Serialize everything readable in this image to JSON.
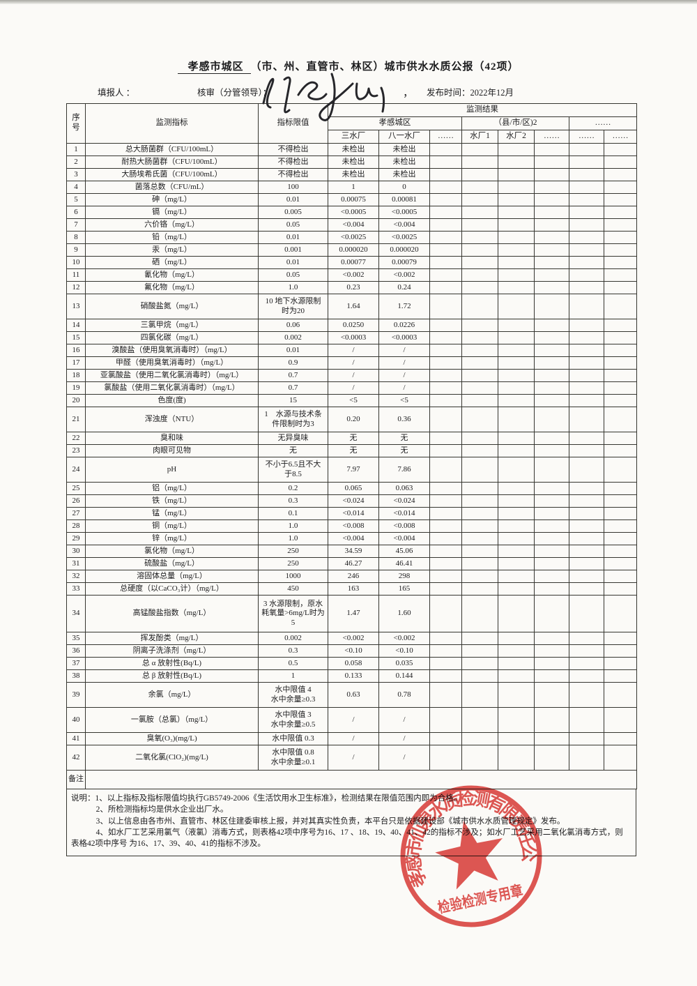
{
  "title": {
    "underlined": "孝感市城区",
    "rest": "（市、州、直管市、林区）城市供水水质公报（42项）"
  },
  "meta": {
    "filler": "填报人 ：",
    "reviewer": "核审（分管领导）：",
    "comma": "，",
    "publish": "发布时间：2022年12月"
  },
  "table": {
    "head": {
      "seq": "序号",
      "indicator": "监测指标",
      "limit": "指标限值",
      "result": "监测结果",
      "group1": "孝感城区",
      "group2": "（县/市/区)2",
      "group3": "……",
      "plants": [
        "三水厂",
        "八一水厂",
        "……",
        "水厂1",
        "水厂2",
        "……",
        "……",
        "……"
      ]
    },
    "rows": [
      {
        "no": "1",
        "name": "总大肠菌群（CFU/100mL）",
        "limit": "不得检出",
        "v1": "未检出",
        "v2": "未检出",
        "h": "s"
      },
      {
        "no": "2",
        "name": "耐热大肠菌群（CFU/100mL）",
        "limit": "不得检出",
        "v1": "未检出",
        "v2": "未检出",
        "h": "s"
      },
      {
        "no": "3",
        "name": "大肠埃希氏菌（CFU/100mL）",
        "limit": "不得检出",
        "v1": "未检出",
        "v2": "未检出",
        "h": "s"
      },
      {
        "no": "4",
        "name": "菌落总数（CFU/mL）",
        "limit": "100",
        "v1": "1",
        "v2": "0",
        "h": "s"
      },
      {
        "no": "5",
        "name": "砷（mg/L）",
        "limit": "0.01",
        "v1": "0.00075",
        "v2": "0.00081",
        "h": "s"
      },
      {
        "no": "6",
        "name": "镉（mg/L）",
        "limit": "0.005",
        "v1": "<0.0005",
        "v2": "<0.0005",
        "h": "s"
      },
      {
        "no": "7",
        "name": "六价铬（mg/L）",
        "limit": "0.05",
        "v1": "<0.004",
        "v2": "<0.004",
        "h": "s"
      },
      {
        "no": "8",
        "name": "铅（mg/L）",
        "limit": "0.01",
        "v1": "<0.0025",
        "v2": "<0.0025",
        "h": "s"
      },
      {
        "no": "9",
        "name": "汞（mg/L）",
        "limit": "0.001",
        "v1": "0.000020",
        "v2": "0.000020",
        "h": "s"
      },
      {
        "no": "10",
        "name": "硒（mg/L）",
        "limit": "0.01",
        "v1": "0.00077",
        "v2": "0.00079",
        "h": "s"
      },
      {
        "no": "11",
        "name": "氰化物（mg/L）",
        "limit": "0.05",
        "v1": "<0.002",
        "v2": "<0.002",
        "h": "s"
      },
      {
        "no": "12",
        "name": "氟化物（mg/L）",
        "limit": "1.0",
        "v1": "0.23",
        "v2": "0.24",
        "h": "s"
      },
      {
        "no": "13",
        "name": "硝酸盐氮（mg/L）",
        "limit": "10 地下水源限制\n时为20",
        "v1": "1.64",
        "v2": "1.72",
        "h": "d"
      },
      {
        "no": "14",
        "name": "三氯甲烷（mg/L）",
        "limit": "0.06",
        "v1": "0.0250",
        "v2": "0.0226",
        "h": "s"
      },
      {
        "no": "15",
        "name": "四氯化碳（mg/L）",
        "limit": "0.002",
        "v1": "<0.0003",
        "v2": "<0.0003",
        "h": "s"
      },
      {
        "no": "16",
        "name": "溴酸盐（使用臭氧消毒时）（mg/L）",
        "limit": "0.01",
        "v1": "/",
        "v2": "/",
        "h": "s"
      },
      {
        "no": "17",
        "name": "甲醛（使用臭氧消毒时）（mg/L）",
        "limit": "0.9",
        "v1": "/",
        "v2": "/",
        "h": "s"
      },
      {
        "no": "18",
        "name": "亚氯酸盐（使用二氧化氯消毒时）（mg/L）",
        "limit": "0.7",
        "v1": "/",
        "v2": "/",
        "h": "s"
      },
      {
        "no": "19",
        "name": "氯酸盐（使用二氧化氯消毒时）（mg/L）",
        "limit": "0.7",
        "v1": "/",
        "v2": "/",
        "h": "s"
      },
      {
        "no": "20",
        "name": "色度(度)",
        "limit": "15",
        "v1": "<5",
        "v2": "<5",
        "h": "s"
      },
      {
        "no": "21",
        "name": "浑浊度（NTU）",
        "limit": "1　水源与技术条\n件限制时为3",
        "v1": "0.20",
        "v2": "0.36",
        "h": "d"
      },
      {
        "no": "22",
        "name": "臭和味",
        "limit": "无异臭味",
        "v1": "无",
        "v2": "无",
        "h": "s"
      },
      {
        "no": "23",
        "name": "肉眼可见物",
        "limit": "无",
        "v1": "无",
        "v2": "无",
        "h": "s"
      },
      {
        "no": "24",
        "name": "pH",
        "limit": "不小于6.5且不大\n于8.5",
        "v1": "7.97",
        "v2": "7.86",
        "h": "d"
      },
      {
        "no": "25",
        "name": "铝（mg/L）",
        "limit": "0.2",
        "v1": "0.065",
        "v2": "0.063",
        "h": "s"
      },
      {
        "no": "26",
        "name": "铁（mg/L）",
        "limit": "0.3",
        "v1": "<0.024",
        "v2": "<0.024",
        "h": "s"
      },
      {
        "no": "27",
        "name": "锰（mg/L）",
        "limit": "0.1",
        "v1": "<0.014",
        "v2": "<0.014",
        "h": "s"
      },
      {
        "no": "28",
        "name": "铜（mg/L）",
        "limit": "1.0",
        "v1": "<0.008",
        "v2": "<0.008",
        "h": "s"
      },
      {
        "no": "29",
        "name": "锌（mg/L）",
        "limit": "1.0",
        "v1": "<0.004",
        "v2": "<0.004",
        "h": "s"
      },
      {
        "no": "30",
        "name": "氯化物（mg/L）",
        "limit": "250",
        "v1": "34.59",
        "v2": "45.06",
        "h": "s"
      },
      {
        "no": "31",
        "name": "硫酸盐（mg/L）",
        "limit": "250",
        "v1": "46.27",
        "v2": "46.41",
        "h": "s"
      },
      {
        "no": "32",
        "name": "溶固体总量（mg/L）",
        "limit": "1000",
        "v1": "246",
        "v2": "298",
        "h": "s"
      },
      {
        "no": "33",
        "name": "总硬度（以CaCO₃计）（mg/L）",
        "limit": "450",
        "v1": "163",
        "v2": "165",
        "h": "s"
      },
      {
        "no": "34",
        "name": "高锰酸盐指数（mg/L）",
        "limit": "3 水源限制，原水\n耗氧量>6mg/L时为\n5",
        "v1": "1.47",
        "v2": "1.60",
        "h": "t"
      },
      {
        "no": "35",
        "name": "挥发酚类（mg/L）",
        "limit": "0.002",
        "v1": "<0.002",
        "v2": "<0.002",
        "h": "s"
      },
      {
        "no": "36",
        "name": "阴离子洗涤剂（mg/L）",
        "limit": "0.3",
        "v1": "<0.10",
        "v2": "<0.10",
        "h": "s"
      },
      {
        "no": "37",
        "name": "总 α 放射性(Bq/L)",
        "limit": "0.5",
        "v1": "0.058",
        "v2": "0.035",
        "h": "s"
      },
      {
        "no": "38",
        "name": "总 β 放射性(Bq/L)",
        "limit": "1",
        "v1": "0.133",
        "v2": "0.144",
        "h": "s"
      },
      {
        "no": "39",
        "name": "余氯（mg/L）",
        "limit": "水中限值 4\n水中余量≥0.3",
        "v1": "0.63",
        "v2": "0.78",
        "h": "d"
      },
      {
        "no": "40",
        "name": "一氯胺（总氯）（mg/L）",
        "limit": "水中限值 3\n水中余量≥0.5",
        "v1": "/",
        "v2": "/",
        "h": "d"
      },
      {
        "no": "41",
        "name": "臭氧(O₃)(mg/L)",
        "limit": "水中限值 0.3",
        "v1": "/",
        "v2": "/",
        "h": "s"
      },
      {
        "no": "42",
        "name": "二氧化氯(ClO₂)(mg/L)",
        "limit": "水中限值 0.8\n水中余量≥0.1",
        "v1": "/",
        "v2": "/",
        "h": "d"
      }
    ]
  },
  "remark": {
    "label": "备注："
  },
  "notes": {
    "label": "说明：",
    "items": [
      "1、以上指标及指标限值均执行GB5749-2006《生活饮用水卫生标准》，检测结果在限值范围内即为合格。",
      "2、所检测指标均是供水企业出厂水。",
      "3、以上信息由各市州、直管市、林区住建委审核上报，并对其真实性负责，本平台只是依据建设部《城市供水水质管理规定》发布。",
      "4、如水厂工艺采用氯气（液氯）消毒方式，则表格42项中序号为16、17 、18、19、40、41、42的指标不涉及；如水厂工艺采用二氧化氯消毒方式，则表格42项中序号 为16、17、39、40、41的指标不涉及。"
    ]
  },
  "stamp": {
    "company": "孝感市仙泉水质检测有限责任公司",
    "label": "检验检测专用章",
    "color": "#dc3f3a"
  },
  "colors": {
    "ink": "#1c1c1e",
    "border": "#35352f",
    "stamp_red": "#dc3f3a"
  }
}
